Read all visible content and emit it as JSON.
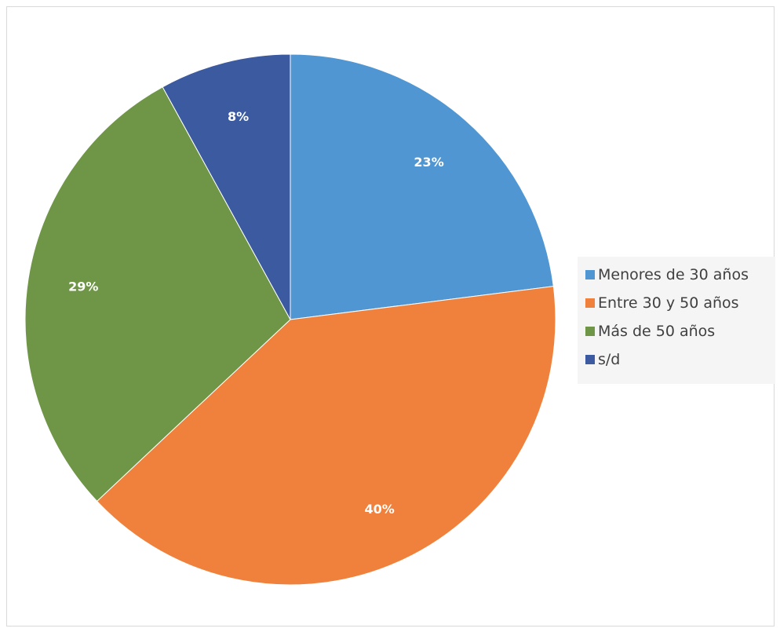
{
  "chart_data": {
    "type": "pie",
    "categories": [
      "Menores de 30 años",
      "Entre 30 y 50 años",
      "Más de 50 años",
      "s/d"
    ],
    "values": [
      23,
      40,
      29,
      8
    ],
    "data_labels": [
      "23%",
      "40%",
      "29%",
      "8%"
    ],
    "colors": [
      "#5096d2",
      "#f0813c",
      "#6e9646",
      "#3c5aa0"
    ],
    "legend_position": "right",
    "title": ""
  }
}
